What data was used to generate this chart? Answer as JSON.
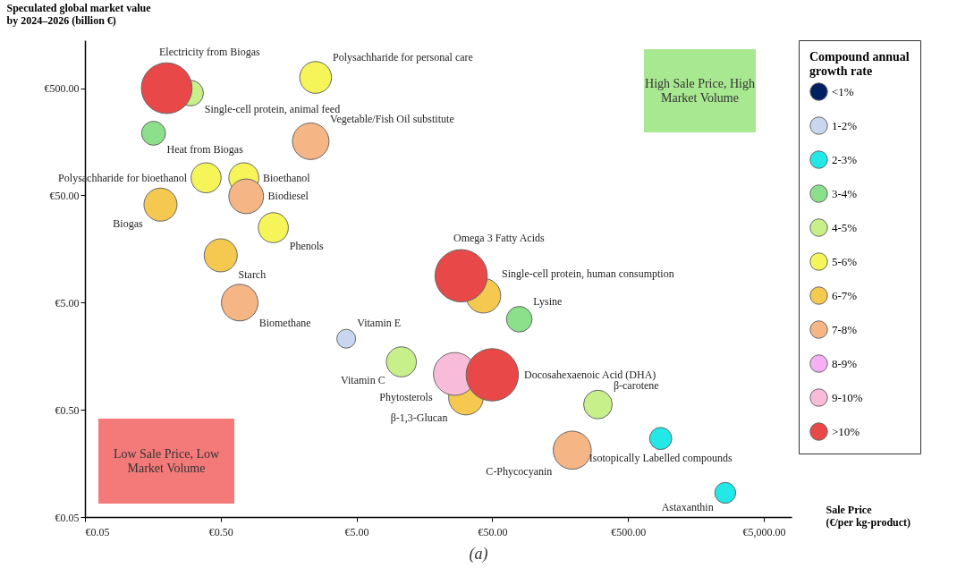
{
  "chart_data": {
    "type": "bubble",
    "xlabel": "Sale Price (€/per kg-product)",
    "ylabel": "Speculated global market value by 2024–2026 (billion €)",
    "legend_title": "Compound annual growth rate",
    "legend": "right",
    "grid": false,
    "log": "xy",
    "xlim": [
      0.05,
      8000
    ],
    "xticks": [
      {
        "value": 0.05,
        "label": "€0.05"
      },
      {
        "value": 0.5,
        "label": "€0.50"
      },
      {
        "value": 5,
        "label": "€5.00"
      },
      {
        "value": 50,
        "label": "€50.00"
      },
      {
        "value": 500,
        "label": "€500.00"
      },
      {
        "value": 5000,
        "label": "€5,000.00"
      }
    ],
    "ylim": [
      0.05,
      1400
    ],
    "yticks": [
      {
        "value": 0.05,
        "label": "€0.05"
      },
      {
        "value": 0.5,
        "label": "€0.50"
      },
      {
        "value": 5,
        "label": "€5.00"
      },
      {
        "value": 50,
        "label": "€50.00"
      },
      {
        "value": 500,
        "label": "€500.00"
      }
    ],
    "series": [
      {
        "name": "<1%",
        "color": "#002060"
      },
      {
        "name": "1-2%",
        "color": "#c9d6f0",
        "x": [
          4.2
        ],
        "values": [
          2.3
        ],
        "sizes": [
          0.13
        ]
      },
      {
        "name": "2-3%",
        "color": "#22e8e8",
        "x": [
          870,
          2600
        ],
        "values": [
          0.27,
          0.084
        ],
        "sizes": [
          0.18,
          0.16
        ]
      },
      {
        "name": "3-4%",
        "color": "#8ce08c",
        "x": [
          0.16,
          79
        ],
        "values": [
          190,
          3.5
        ],
        "sizes": [
          0.21,
          0.24
        ]
      },
      {
        "name": "4-5%",
        "color": "#c8f08a",
        "x": [
          0.3,
          10.7,
          300
        ],
        "values": [
          450,
          1.4,
          0.56
        ],
        "sizes": [
          0.24,
          0.33,
          0.3
        ]
      },
      {
        "name": "5-6%",
        "color": "#f5f55a",
        "x": [
          2.5,
          0.39,
          0.74,
          1.22
        ],
        "values": [
          630,
          73,
          73,
          25
        ],
        "sizes": [
          0.37,
          0.33,
          0.33,
          0.33
        ]
      },
      {
        "name": "6-7%",
        "color": "#f5c850",
        "x": [
          0.18,
          0.5,
          43,
          32
        ],
        "values": [
          41,
          13.8,
          5.8,
          0.65
        ],
        "sizes": [
          0.4,
          0.4,
          0.44,
          0.44
        ]
      },
      {
        "name": "7-8%",
        "color": "#f5b585",
        "x": [
          2.3,
          0.77,
          0.69,
          194
        ],
        "values": [
          160,
          49,
          5,
          0.21
        ],
        "sizes": [
          0.49,
          0.44,
          0.49,
          0.53
        ]
      },
      {
        "name": "8-9%",
        "color": "#f5b0f5"
      },
      {
        "name": "9-10%",
        "color": "#f8bcd8",
        "x": [
          26.5
        ],
        "values": [
          1.08
        ],
        "sizes": [
          0.67
        ]
      },
      {
        "name": ">10%",
        "color": "#e84848",
        "x": [
          0.2,
          29.5,
          50
        ],
        "values": [
          500,
          8.9,
          1.06
        ],
        "sizes": [
          0.94,
          1,
          1
        ]
      }
    ],
    "annotations": [
      {
        "text": "Electricity from Biogas",
        "x": 0.2,
        "y": 500
      },
      {
        "text": "Single-cell protein, animal feed",
        "x": 0.3,
        "y": 450
      },
      {
        "text": "Polysachharide for personal care",
        "x": 2.5,
        "y": 630
      },
      {
        "text": "Heat from Biogas",
        "x": 0.16,
        "y": 190
      },
      {
        "text": "Vegetable/Fish  Oil substitute",
        "x": 2.3,
        "y": 160
      },
      {
        "text": "Polysachharide for bioethanol",
        "x": 0.39,
        "y": 73
      },
      {
        "text": "Bioethanol",
        "x": 0.74,
        "y": 73
      },
      {
        "text": "Biodiesel",
        "x": 0.77,
        "y": 49
      },
      {
        "text": "Biogas",
        "x": 0.18,
        "y": 41
      },
      {
        "text": "Phenols",
        "x": 1.22,
        "y": 25
      },
      {
        "text": "Starch",
        "x": 0.5,
        "y": 13.8
      },
      {
        "text": "Biomethane",
        "x": 0.69,
        "y": 5
      },
      {
        "text": "Omega 3 Fatty Acids",
        "x": 29.5,
        "y": 8.9
      },
      {
        "text": "Single-cell protein, human consumption",
        "x": 43,
        "y": 5.8
      },
      {
        "text": "Lysine",
        "x": 79,
        "y": 3.5
      },
      {
        "text": "Vitamin E",
        "x": 4.2,
        "y": 2.3
      },
      {
        "text": "Vitamin C",
        "x": 10.7,
        "y": 1.4
      },
      {
        "text": "Docosahexaenoic Acid (DHA)",
        "x": 50,
        "y": 1.06
      },
      {
        "text": "Phytosterols",
        "x": 26.5,
        "y": 1.08
      },
      {
        "text": "β-1,3-Glucan",
        "x": 32,
        "y": 0.65
      },
      {
        "text": "β-carotene",
        "x": 300,
        "y": 0.56
      },
      {
        "text": "C-Phycocyanin",
        "x": 194,
        "y": 0.21
      },
      {
        "text": "Isotopically Labelled compounds",
        "x": 870,
        "y": 0.27
      },
      {
        "text": "Astaxanthin",
        "x": 2600,
        "y": 0.084
      },
      "High Sale Price, High Market Volume",
      "Low Sale Price, Low Market Volume",
      "(a)"
    ]
  }
}
